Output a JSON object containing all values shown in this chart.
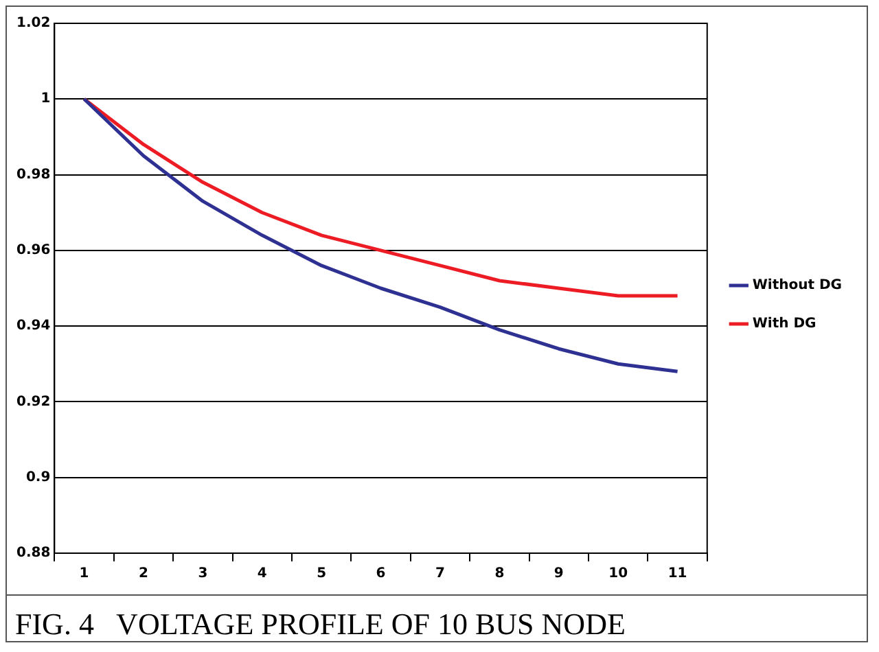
{
  "chart_data": {
    "type": "line",
    "categories": [
      "1",
      "2",
      "3",
      "4",
      "5",
      "6",
      "7",
      "8",
      "9",
      "10",
      "11"
    ],
    "series": [
      {
        "name": "Without DG",
        "color": "#2e3192",
        "values": [
          1.0,
          0.985,
          0.973,
          0.964,
          0.956,
          0.95,
          0.945,
          0.939,
          0.934,
          0.93,
          0.928
        ]
      },
      {
        "name": "With DG",
        "color": "#ed1c24",
        "values": [
          1.0,
          0.988,
          0.978,
          0.97,
          0.964,
          0.96,
          0.956,
          0.952,
          0.95,
          0.948,
          0.948
        ]
      }
    ],
    "ylim": [
      0.88,
      1.02
    ],
    "yticks": [
      0.88,
      0.9,
      0.92,
      0.94,
      0.96,
      0.98,
      1,
      1.02
    ],
    "grid": "y",
    "legend": "right",
    "marker": "none",
    "annotations": [
      "FIG. 4   VOLTAGE PROFILE OF 10 BUS NODE"
    ]
  }
}
